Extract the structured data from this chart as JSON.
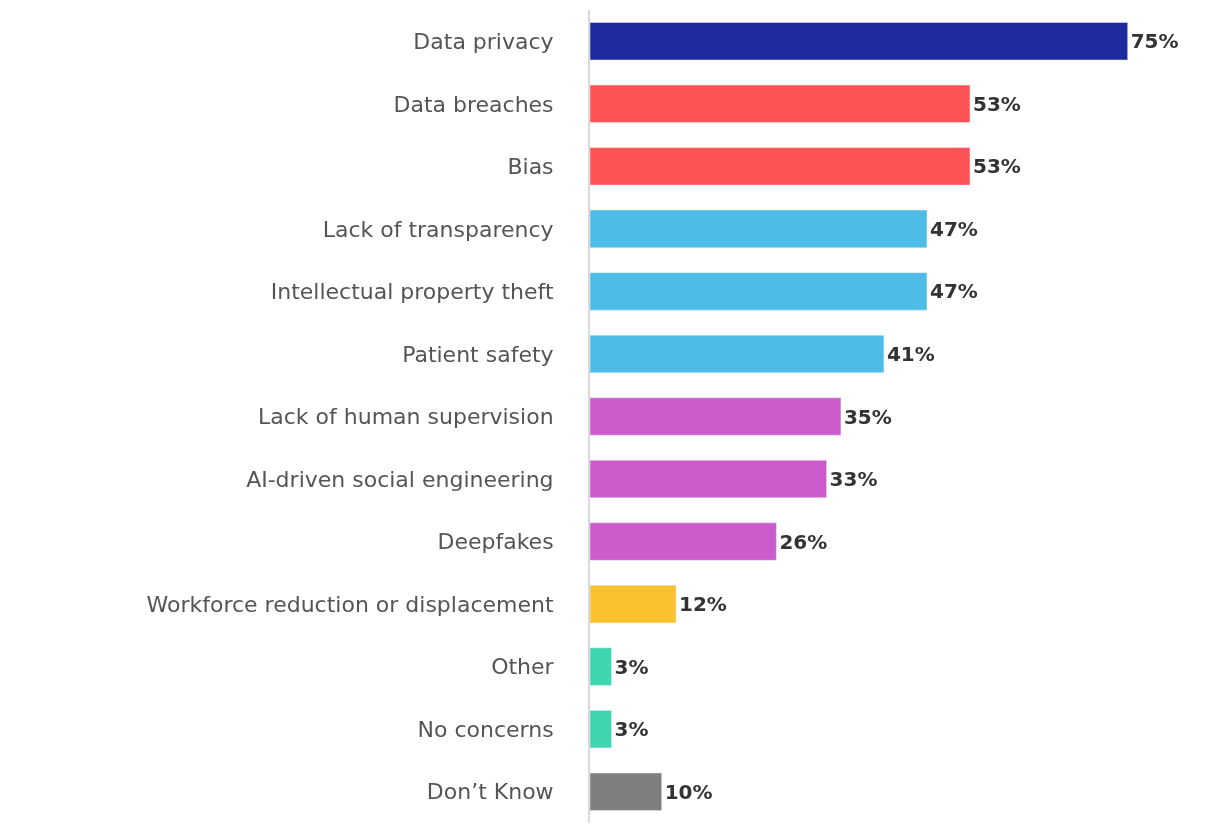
{
  "chart_data": {
    "type": "bar",
    "orientation": "horizontal",
    "categories": [
      "Data privacy",
      "Data breaches",
      "Bias",
      "Lack of transparency",
      "Intellectual property theft",
      "Patient safety",
      "Lack of human supervision",
      "AI-driven social engineering",
      "Deepfakes",
      "Workforce reduction or displacement",
      "Other",
      "No concerns",
      "Don’t Know"
    ],
    "values": [
      75,
      53,
      53,
      47,
      47,
      41,
      35,
      33,
      26,
      12,
      3,
      3,
      10
    ],
    "value_labels": [
      "75%",
      "53%",
      "53%",
      "47%",
      "47%",
      "41%",
      "35%",
      "33%",
      "26%",
      "12%",
      "3%",
      "3%",
      "10%"
    ],
    "colors": [
      "#1f2a9e",
      "#ff5257",
      "#ff5257",
      "#4dbde8",
      "#4dbde8",
      "#4dbde8",
      "#cc5ccc",
      "#cc5ccc",
      "#cc5ccc",
      "#f9c22e",
      "#3dd6b0",
      "#3dd6b0",
      "#7f7f7f"
    ]
  }
}
